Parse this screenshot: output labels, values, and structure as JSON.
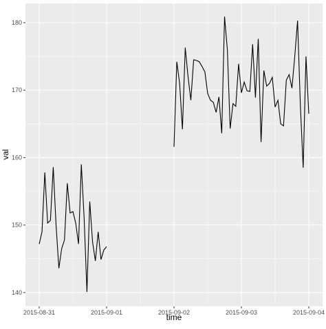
{
  "chart_data": {
    "type": "line",
    "x_label": "time",
    "y_label": "val",
    "x": [
      0,
      1,
      2,
      3,
      4,
      5,
      6,
      7,
      8,
      9,
      10,
      11,
      12,
      13,
      14,
      15,
      16,
      17,
      18,
      19,
      20,
      21,
      22,
      23,
      24,
      36,
      48,
      49,
      50,
      51,
      52,
      53,
      54,
      55,
      56,
      57,
      58,
      59,
      60,
      61,
      62,
      63,
      64,
      65,
      66,
      67,
      68,
      69,
      70,
      71,
      72,
      73,
      74,
      75,
      76,
      77,
      78,
      79,
      80,
      81,
      82,
      83,
      84,
      85,
      86,
      87,
      88,
      89,
      90,
      91,
      92,
      93,
      94,
      95,
      96
    ],
    "series": [
      {
        "color": "#000000",
        "values": [
          147.2,
          149,
          157.8,
          150.3,
          150.7,
          158.6,
          150,
          143.6,
          146.5,
          147.8,
          156.2,
          151.8,
          152,
          150.3,
          147.2,
          159,
          151,
          140.1,
          153.5,
          147.5,
          144.7,
          149,
          144.9,
          146.3,
          146.8,
          null,
          161.6,
          174.2,
          171,
          164.2,
          176.3,
          172,
          168.5,
          174.5,
          174.4,
          174.2,
          173.5,
          172.7,
          169.5,
          168.5,
          168.2,
          166.7,
          169,
          163.6,
          180.9,
          176,
          164.3,
          168,
          167.6,
          173.9,
          169.6,
          171.2,
          169.9,
          169.8,
          176.8,
          168.9,
          177.6,
          162.3,
          172.9,
          170.6,
          171,
          171.9,
          167.5,
          168.5,
          165,
          164.7,
          171.5,
          172.3,
          170.3,
          175,
          180.3,
          167.7,
          158.5,
          175,
          166.5
        ]
      }
    ],
    "xlim": [
      -4.9,
      100.9
    ],
    "xticks": [
      {
        "value": 0,
        "label": "2015-08-31"
      },
      {
        "value": 24,
        "label": "2015-09-01"
      },
      {
        "value": 48,
        "label": "2015-09-02"
      },
      {
        "value": 72,
        "label": "2015-09-03"
      },
      {
        "value": 96,
        "label": "2015-09-04"
      }
    ],
    "ylim": [
      137.96,
      182.85
    ],
    "yticks": [
      140,
      150,
      160,
      170,
      180
    ],
    "grid": true
  }
}
